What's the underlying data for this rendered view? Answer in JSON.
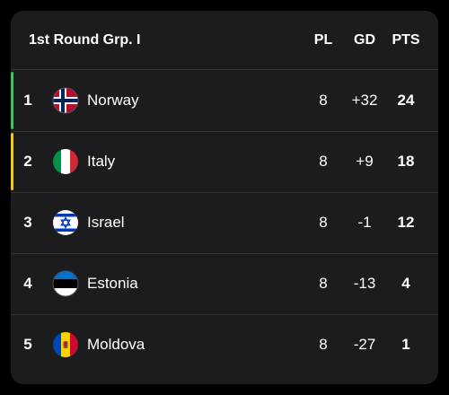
{
  "header": {
    "title": "1st Round Grp. I",
    "columns": [
      "PL",
      "GD",
      "PTS"
    ]
  },
  "table": {
    "rows": [
      [
        "1",
        "Norway",
        "8",
        "+32",
        "24"
      ],
      [
        "2",
        "Italy",
        "8",
        "+9",
        "18"
      ],
      [
        "3",
        "Israel",
        "8",
        "-1",
        "12"
      ],
      [
        "4",
        "Estonia",
        "8",
        "-13",
        "4"
      ],
      [
        "5",
        "Moldova",
        "8",
        "-27",
        "1"
      ]
    ]
  }
}
